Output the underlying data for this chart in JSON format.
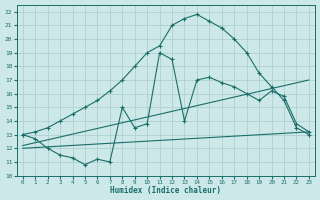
{
  "bg_color": "#cce8e8",
  "grid_color": "#b0d8d8",
  "line_color": "#1a6e6a",
  "xlabel": "Humidex (Indice chaleur)",
  "xlim": [
    -0.5,
    23.5
  ],
  "ylim": [
    10,
    22.5
  ],
  "xticks": [
    0,
    1,
    2,
    3,
    4,
    5,
    6,
    7,
    8,
    9,
    10,
    11,
    12,
    13,
    14,
    15,
    16,
    17,
    18,
    19,
    20,
    21,
    22,
    23
  ],
  "yticks": [
    10,
    11,
    12,
    13,
    14,
    15,
    16,
    17,
    18,
    19,
    20,
    21,
    22
  ],
  "smooth_x": [
    0,
    1,
    2,
    3,
    4,
    5,
    6,
    7,
    8,
    9,
    10,
    11,
    12,
    13,
    14,
    15,
    16,
    17,
    18,
    19,
    20,
    21,
    22,
    23
  ],
  "smooth_y": [
    13.0,
    13.2,
    13.5,
    14.0,
    14.5,
    15.0,
    15.5,
    16.2,
    17.0,
    18.0,
    19.0,
    19.5,
    21.0,
    21.5,
    21.8,
    21.3,
    20.8,
    20.0,
    19.0,
    17.5,
    16.5,
    15.5,
    13.5,
    13.0
  ],
  "jagged_x": [
    0,
    1,
    2,
    3,
    4,
    5,
    6,
    7,
    8,
    9,
    10,
    11,
    12,
    13,
    14,
    15,
    16,
    17,
    18,
    19,
    20,
    21,
    22,
    23
  ],
  "jagged_y": [
    13.0,
    12.7,
    12.0,
    11.5,
    11.3,
    10.8,
    11.2,
    11.0,
    15.0,
    13.5,
    13.8,
    19.0,
    18.5,
    14.0,
    17.0,
    17.2,
    16.8,
    16.5,
    16.0,
    15.5,
    16.2,
    15.8,
    13.8,
    13.2
  ],
  "line3_x": [
    0,
    23
  ],
  "line3_y": [
    12.2,
    17.0
  ],
  "line4_x": [
    0,
    23
  ],
  "line4_y": [
    12.0,
    13.2
  ]
}
